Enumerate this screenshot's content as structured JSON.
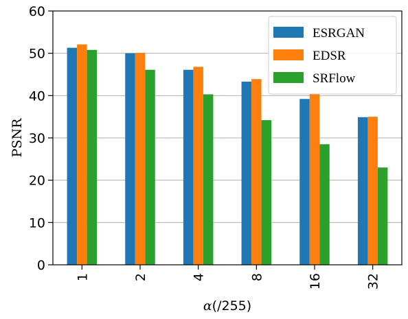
{
  "chart_data": {
    "type": "bar",
    "categories": [
      "1",
      "2",
      "4",
      "8",
      "16",
      "32"
    ],
    "series": [
      {
        "name": "ESRGAN",
        "values": [
          51.3,
          50.0,
          46.1,
          43.3,
          39.2,
          34.9
        ],
        "color": "#1f77b4"
      },
      {
        "name": "EDSR",
        "values": [
          52.1,
          50.1,
          46.8,
          43.9,
          40.3,
          35.0
        ],
        "color": "#ff7f0e"
      },
      {
        "name": "SRFlow",
        "values": [
          50.8,
          46.1,
          40.3,
          34.2,
          28.5,
          23.0
        ],
        "color": "#2ca02c"
      }
    ],
    "title": "",
    "xlabel_symbol": "α",
    "xlabel_suffix": "(/255)",
    "ylabel": "PSNR",
    "ylim": [
      0,
      60
    ],
    "yticks": [
      "0",
      "10",
      "20",
      "30",
      "40",
      "50",
      "60"
    ],
    "grid": "horizontal",
    "legend_position": "top-right"
  }
}
